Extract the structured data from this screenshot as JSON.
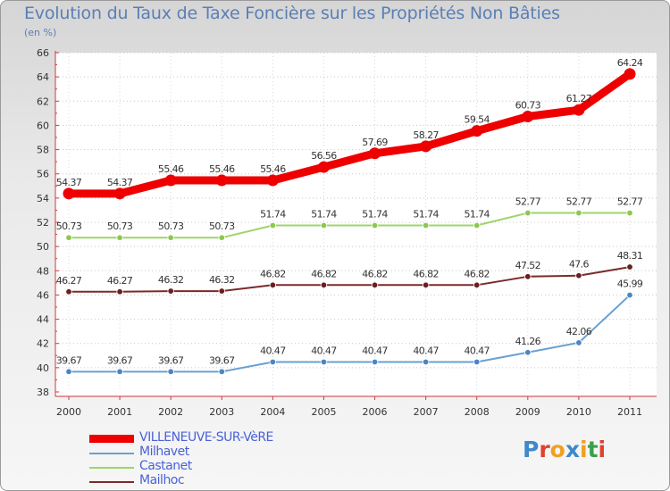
{
  "title": "Evolution du Taux de Taxe Foncière sur les Propriétés Non Bâties",
  "subtitle": "(en %)",
  "logo": {
    "text": [
      "P",
      "r",
      "o",
      "x",
      "i",
      "t",
      "i"
    ],
    "colors": [
      "#3f89c9",
      "#e0412f",
      "#f0a020",
      "#3f89c9",
      "#f0a020",
      "#3aa04a",
      "#e0412f"
    ]
  },
  "chart_data": {
    "type": "line",
    "title": "Evolution du Taux de Taxe Foncière sur les Propriétés Non Bâties",
    "ylabel": "(en %)",
    "xlabel": "",
    "x": [
      "2000",
      "2001",
      "2002",
      "2003",
      "2004",
      "2005",
      "2006",
      "2007",
      "2008",
      "2009",
      "2010",
      "2011"
    ],
    "ylim": [
      38,
      66
    ],
    "yticks": [
      "38",
      "40",
      "42",
      "44",
      "46",
      "48",
      "50",
      "52",
      "54",
      "56",
      "58",
      "60",
      "62",
      "64",
      "66"
    ],
    "grid": "horizontal dotted",
    "legend": "bottom-left",
    "series": [
      {
        "name": "VILLENEUVE-SUR-VèRE",
        "color": "#ee0000",
        "thick": true,
        "values": [
          54.37,
          54.37,
          55.46,
          55.46,
          55.46,
          56.56,
          57.69,
          58.27,
          59.54,
          60.73,
          61.27,
          64.24
        ],
        "labels": [
          "54.37",
          "54.37",
          "55.46",
          "55.46",
          "55.46",
          "56.56",
          "57.69",
          "58.27",
          "59.54",
          "60.73",
          "61.27",
          "64.24"
        ]
      },
      {
        "name": "Milhavet",
        "color": "#6aa0d0",
        "marker": "#4a86c4",
        "values": [
          39.67,
          39.67,
          39.67,
          39.67,
          40.47,
          40.47,
          40.47,
          40.47,
          40.47,
          41.26,
          42.06,
          45.99
        ],
        "labels": [
          "39.67",
          "39.67",
          "39.67",
          "39.67",
          "40.47",
          "40.47",
          "40.47",
          "40.47",
          "40.47",
          "41.26",
          "42.06",
          "45.99"
        ]
      },
      {
        "name": "Castanet",
        "color": "#9ed46a",
        "marker": "#8cc850",
        "values": [
          50.73,
          50.73,
          50.73,
          50.73,
          51.74,
          51.74,
          51.74,
          51.74,
          51.74,
          52.77,
          52.77,
          52.77
        ],
        "labels": [
          "50.73",
          "50.73",
          "50.73",
          "50.73",
          "51.74",
          "51.74",
          "51.74",
          "51.74",
          "51.74",
          "52.77",
          "52.77",
          "52.77"
        ]
      },
      {
        "name": "Mailhoc",
        "color": "#7a2a2a",
        "marker": "#6a1e1e",
        "values": [
          46.27,
          46.27,
          46.32,
          46.32,
          46.82,
          46.82,
          46.82,
          46.82,
          46.82,
          47.52,
          47.6,
          48.31
        ],
        "labels": [
          "46.27",
          "46.27",
          "46.32",
          "46.32",
          "46.82",
          "46.82",
          "46.82",
          "46.82",
          "46.82",
          "47.52",
          "47.6",
          "48.31"
        ]
      }
    ]
  }
}
